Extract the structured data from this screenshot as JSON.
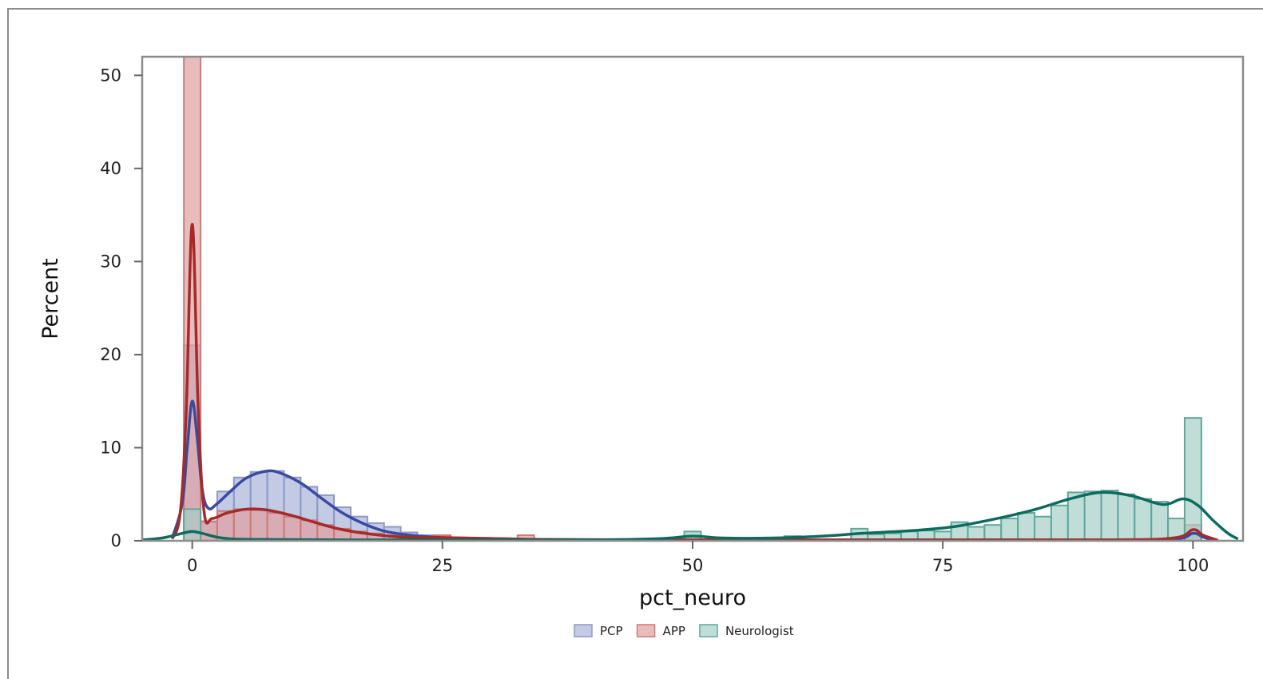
{
  "chart_data": {
    "type": "histogram",
    "xlabel": "pct_neuro",
    "ylabel": "Percent",
    "xlim": [
      -5,
      105
    ],
    "ylim": [
      0,
      52
    ],
    "x_ticks": [
      0,
      25,
      50,
      75,
      100
    ],
    "y_ticks": [
      0,
      10,
      20,
      30,
      40,
      50
    ],
    "legend_position": "bottom",
    "bin_width": 1.667,
    "series": [
      {
        "name": "PCP",
        "fill": "#aab3d9",
        "stroke": "#8e98c9",
        "curve": "#3a4aa0",
        "bins": [
          [
            0,
            21
          ],
          [
            1.667,
            2
          ],
          [
            3.333,
            5.3
          ],
          [
            5,
            6.8
          ],
          [
            6.667,
            7.4
          ],
          [
            8.333,
            7.5
          ],
          [
            10,
            6.8
          ],
          [
            11.667,
            5.8
          ],
          [
            13.333,
            4.9
          ],
          [
            15,
            3.6
          ],
          [
            16.667,
            2.6
          ],
          [
            18.333,
            1.9
          ],
          [
            20,
            1.5
          ],
          [
            21.667,
            0.9
          ],
          [
            23.333,
            0.6
          ],
          [
            25,
            0.4
          ],
          [
            26.667,
            0.3
          ],
          [
            28.333,
            0.25
          ],
          [
            30,
            0.2
          ],
          [
            31.667,
            0.15
          ],
          [
            33.333,
            0.1
          ],
          [
            100,
            1
          ]
        ],
        "curve_points": [
          [
            -2,
            0.3
          ],
          [
            -1,
            4
          ],
          [
            -0.5,
            10
          ],
          [
            0,
            15
          ],
          [
            0.5,
            11
          ],
          [
            1,
            5.5
          ],
          [
            1.6,
            3.5
          ],
          [
            2.5,
            4
          ],
          [
            4,
            5.5
          ],
          [
            5.5,
            6.8
          ],
          [
            7.5,
            7.5
          ],
          [
            9,
            7.2
          ],
          [
            11,
            6.1
          ],
          [
            13,
            4.5
          ],
          [
            15,
            3
          ],
          [
            17,
            1.9
          ],
          [
            19,
            1.1
          ],
          [
            21,
            0.7
          ],
          [
            24,
            0.4
          ],
          [
            27,
            0.25
          ],
          [
            32,
            0.15
          ],
          [
            40,
            0.1
          ],
          [
            60,
            0.1
          ],
          [
            90,
            0.1
          ],
          [
            98,
            0.15
          ],
          [
            100,
            0.8
          ],
          [
            101,
            0.4
          ],
          [
            102,
            0.05
          ]
        ]
      },
      {
        "name": "APP",
        "fill": "#e0a0a0",
        "stroke": "#cc7a7a",
        "curve": "#a52a2a",
        "bins": [
          [
            0,
            52
          ],
          [
            1.667,
            2.1
          ],
          [
            3.333,
            3.2
          ],
          [
            5,
            3.4
          ],
          [
            6.667,
            3.3
          ],
          [
            8.333,
            3.0
          ],
          [
            10,
            2.6
          ],
          [
            11.667,
            2.2
          ],
          [
            13.333,
            1.7
          ],
          [
            15,
            1.3
          ],
          [
            16.667,
            1.0
          ],
          [
            18.333,
            0.8
          ],
          [
            20,
            0.6
          ],
          [
            21.667,
            0.45
          ],
          [
            23.333,
            0.4
          ],
          [
            25,
            0.6
          ],
          [
            26.667,
            0.35
          ],
          [
            28.333,
            0.3
          ],
          [
            30,
            0.25
          ],
          [
            33.333,
            0.6
          ],
          [
            100,
            1.7
          ]
        ],
        "curve_points": [
          [
            -2,
            0.2
          ],
          [
            -1.2,
            3
          ],
          [
            -0.6,
            14
          ],
          [
            0,
            34
          ],
          [
            0.6,
            14
          ],
          [
            1.2,
            3
          ],
          [
            2,
            2.4
          ],
          [
            3.5,
            3
          ],
          [
            5.5,
            3.4
          ],
          [
            7.5,
            3.3
          ],
          [
            10,
            2.7
          ],
          [
            12.5,
            1.9
          ],
          [
            15,
            1.2
          ],
          [
            18,
            0.7
          ],
          [
            21,
            0.4
          ],
          [
            25,
            0.35
          ],
          [
            30,
            0.25
          ],
          [
            35,
            0.15
          ],
          [
            45,
            0.1
          ],
          [
            60,
            0.1
          ],
          [
            90,
            0.1
          ],
          [
            98,
            0.3
          ],
          [
            100,
            1.2
          ],
          [
            101,
            0.6
          ],
          [
            102.5,
            0.05
          ]
        ]
      },
      {
        "name": "Neurologist",
        "fill": "#a7cfc7",
        "stroke": "#5ea89a",
        "curve": "#0d6b5e",
        "bins": [
          [
            0,
            3.4
          ],
          [
            50,
            1.0
          ],
          [
            60,
            0.5
          ],
          [
            66.667,
            1.3
          ],
          [
            68.333,
            0.7
          ],
          [
            70,
            0.8
          ],
          [
            71.667,
            1.0
          ],
          [
            73.333,
            1.1
          ],
          [
            75,
            1.0
          ],
          [
            76.667,
            2.0
          ],
          [
            78.333,
            1.5
          ],
          [
            80,
            1.7
          ],
          [
            81.667,
            2.4
          ],
          [
            83.333,
            3.0
          ],
          [
            85,
            2.6
          ],
          [
            86.667,
            3.8
          ],
          [
            88.333,
            5.2
          ],
          [
            90,
            5.3
          ],
          [
            91.667,
            5.4
          ],
          [
            93.333,
            5.0
          ],
          [
            95,
            4.5
          ],
          [
            96.667,
            4.2
          ],
          [
            98.333,
            2.4
          ],
          [
            100,
            13.2
          ]
        ],
        "curve_points": [
          [
            -5,
            0.1
          ],
          [
            -3,
            0.3
          ],
          [
            -1,
            0.8
          ],
          [
            0,
            1.0
          ],
          [
            1,
            0.8
          ],
          [
            3,
            0.3
          ],
          [
            6,
            0.15
          ],
          [
            15,
            0.1
          ],
          [
            30,
            0.1
          ],
          [
            40,
            0.1
          ],
          [
            47,
            0.25
          ],
          [
            50,
            0.5
          ],
          [
            53,
            0.3
          ],
          [
            58,
            0.3
          ],
          [
            63,
            0.5
          ],
          [
            67,
            0.8
          ],
          [
            72,
            1.1
          ],
          [
            76,
            1.5
          ],
          [
            80,
            2.3
          ],
          [
            84,
            3.3
          ],
          [
            88,
            4.6
          ],
          [
            91,
            5.2
          ],
          [
            94,
            4.8
          ],
          [
            97,
            3.9
          ],
          [
            99,
            4.5
          ],
          [
            100.5,
            3.8
          ],
          [
            102,
            2.2
          ],
          [
            103.5,
            0.8
          ],
          [
            104.5,
            0.2
          ]
        ]
      }
    ]
  }
}
